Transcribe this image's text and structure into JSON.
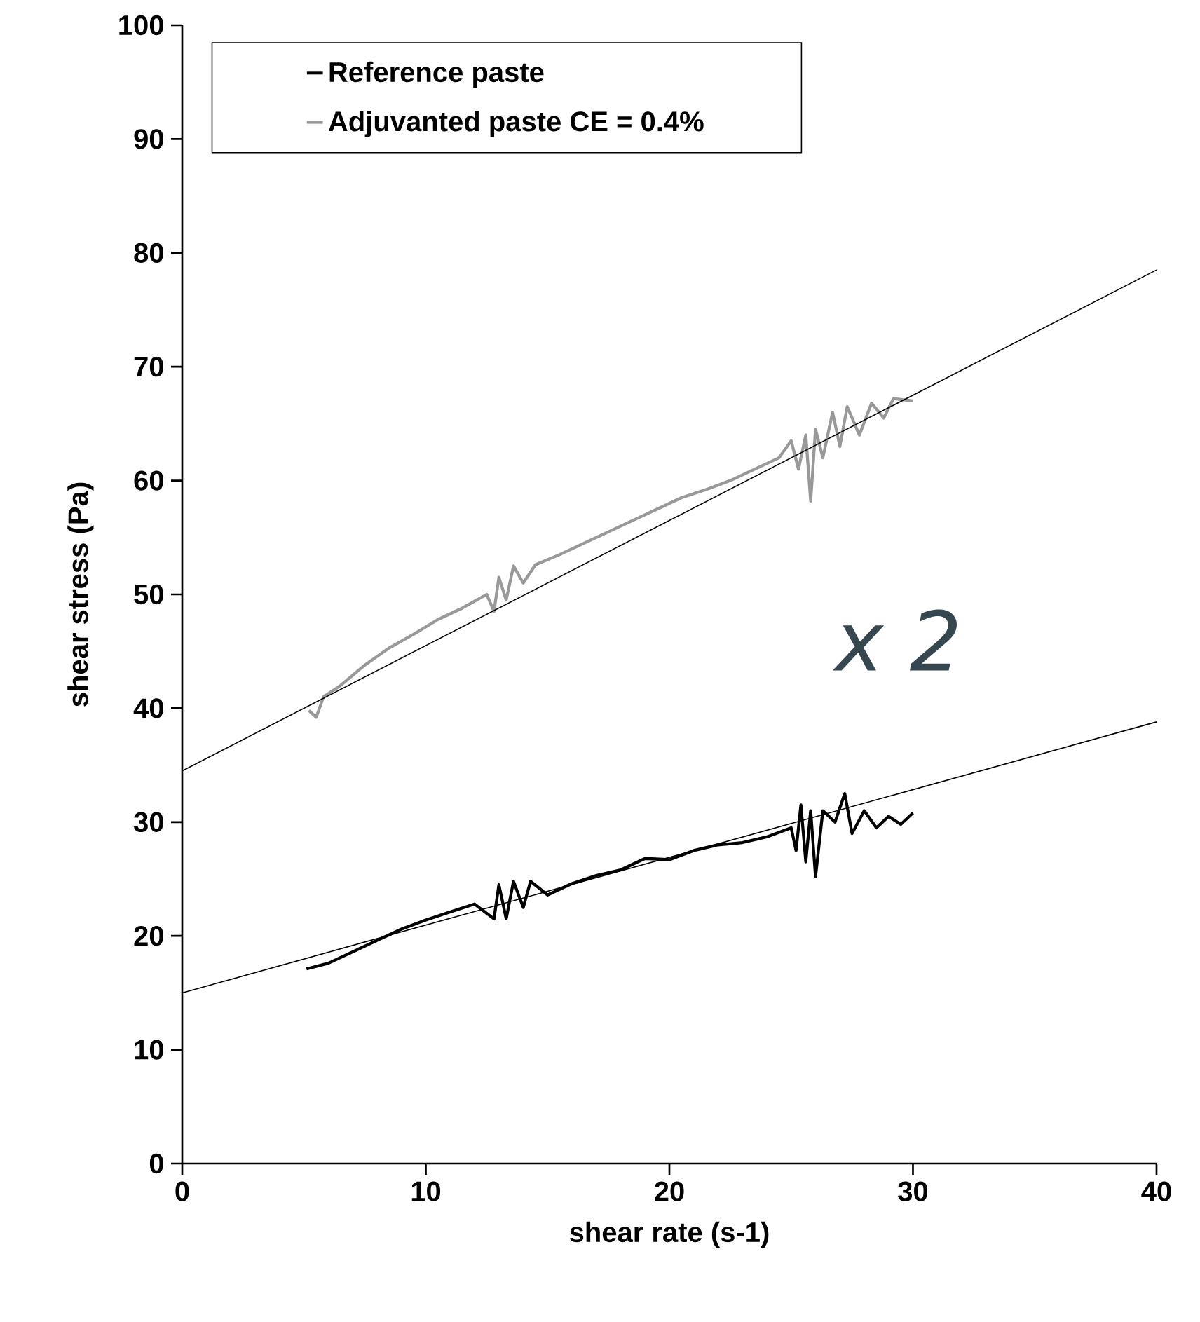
{
  "chart_data": {
    "type": "line",
    "xlabel": "shear rate (s-1)",
    "ylabel": "shear stress (Pa)",
    "xlim": [
      0,
      40
    ],
    "xticks": [
      0,
      10,
      20,
      30,
      40
    ],
    "ylim": [
      0,
      100
    ],
    "yticks": [
      0,
      10,
      20,
      30,
      40,
      50,
      60,
      70,
      80,
      90,
      100
    ],
    "grid": false,
    "legend": "top left",
    "marker": "none",
    "annotations": [
      "x 2"
    ],
    "series": [
      {
        "name": "Reference paste",
        "color": "#000000",
        "x": [
          5.1,
          6,
          7,
          8,
          9,
          10,
          11,
          12,
          12.8,
          13,
          13.3,
          13.6,
          14,
          14.3,
          15,
          16,
          17,
          18,
          19,
          20,
          21,
          22,
          23,
          24,
          25,
          25.2,
          25.4,
          25.6,
          25.8,
          26,
          26.3,
          26.8,
          27.2,
          27.5,
          28,
          28.5,
          29,
          29.5,
          30
        ],
        "values": [
          17.1,
          17.6,
          18.6,
          19.6,
          20.6,
          21.4,
          22.1,
          22.8,
          21.5,
          24.5,
          21.5,
          24.8,
          22.5,
          24.8,
          23.6,
          24.6,
          25.3,
          25.8,
          26.8,
          26.7,
          27.5,
          28,
          28.2,
          28.7,
          29.5,
          27.5,
          31.5,
          26.5,
          31,
          25.2,
          31,
          30,
          32.5,
          29,
          31,
          29.5,
          30.5,
          29.8,
          30.8
        ]
      },
      {
        "name": "Adjuvanted paste CE = 0.4%",
        "color": "#999999",
        "x": [
          5.2,
          5.5,
          5.8,
          6.5,
          7.5,
          8.5,
          9.5,
          10.5,
          11.5,
          12.5,
          12.8,
          13,
          13.3,
          13.6,
          14,
          14.5,
          15.5,
          16.5,
          17.5,
          18.5,
          19.5,
          20.5,
          21.5,
          22.5,
          23.5,
          24.5,
          25,
          25.3,
          25.6,
          25.8,
          26,
          26.3,
          26.7,
          27,
          27.3,
          27.8,
          28.3,
          28.8,
          29.2,
          30
        ],
        "values": [
          39.8,
          39.2,
          41,
          42,
          43.8,
          45.3,
          46.5,
          47.8,
          48.8,
          50,
          48.5,
          51.5,
          49.5,
          52.5,
          51,
          52.6,
          53.5,
          54.5,
          55.5,
          56.5,
          57.5,
          58.5,
          59.2,
          60,
          61,
          62,
          63.5,
          61,
          64,
          58.2,
          64.5,
          62,
          66,
          63,
          66.5,
          64,
          66.8,
          65.5,
          67.2,
          67
        ]
      },
      {
        "type": "line",
        "color": "#000000",
        "x": [
          0,
          40
        ],
        "values": [
          34.5,
          78.5
        ]
      },
      {
        "type": "line",
        "color": "#000000",
        "x": [
          0,
          40
        ],
        "values": [
          15,
          38.8
        ]
      }
    ]
  }
}
